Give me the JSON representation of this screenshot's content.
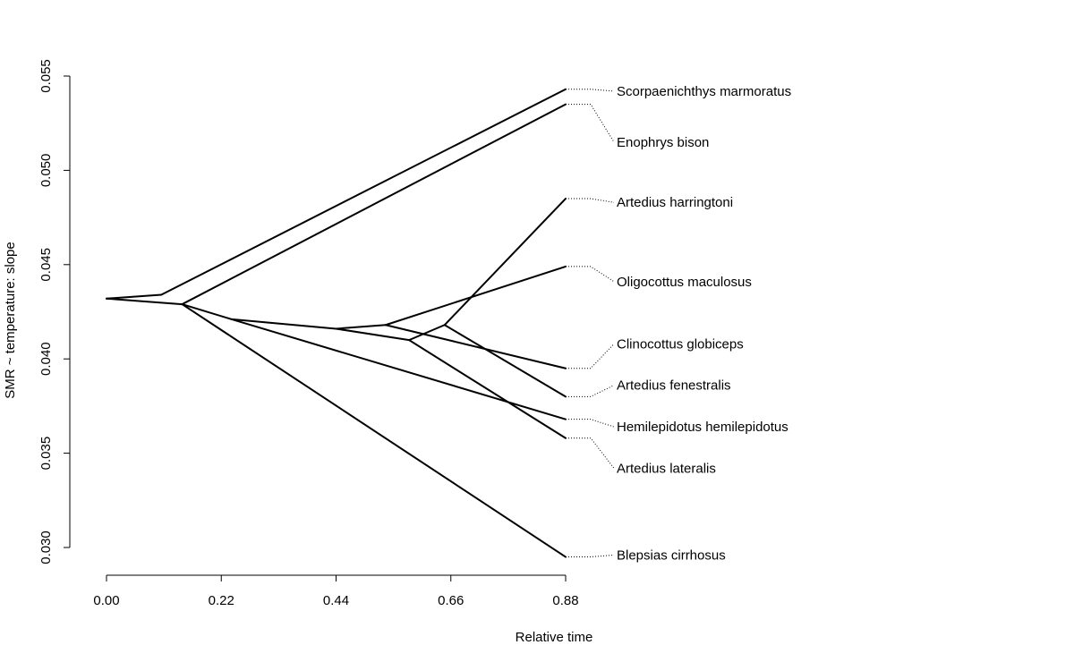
{
  "chart_data": {
    "type": "line",
    "xlabel": "Relative time",
    "ylabel": "SMR ~ temperature: slope",
    "xlim": [
      0,
      0.88
    ],
    "ylim": [
      0.03,
      0.055
    ],
    "xticks": [
      "0.00",
      "0.22",
      "0.44",
      "0.66",
      "0.88"
    ],
    "yticks": [
      "0.030",
      "0.035",
      "0.040",
      "0.045",
      "0.050",
      "0.055"
    ],
    "grid": false,
    "tip_time": 0.88,
    "nodes": [
      {
        "id": "n1",
        "x": 0.0,
        "y": 0.0432
      },
      {
        "id": "n2",
        "x": 0.105,
        "y": 0.0434
      },
      {
        "id": "n3",
        "x": 0.145,
        "y": 0.0429
      },
      {
        "id": "n4",
        "x": 0.24,
        "y": 0.0421
      },
      {
        "id": "n5",
        "x": 0.44,
        "y": 0.0416
      },
      {
        "id": "n6",
        "x": 0.535,
        "y": 0.0418
      },
      {
        "id": "n7",
        "x": 0.58,
        "y": 0.041
      },
      {
        "id": "n8",
        "x": 0.648,
        "y": 0.0418
      }
    ],
    "edges": [
      [
        "n1",
        "n2"
      ],
      [
        "n1",
        "n3"
      ],
      [
        "n3",
        "n4"
      ],
      [
        "n4",
        "n5"
      ],
      [
        "n5",
        "n6"
      ],
      [
        "n5",
        "n7"
      ],
      [
        "n7",
        "n8"
      ]
    ],
    "tips": [
      {
        "name": "Scorpaenichthys marmoratus",
        "parent": "n2",
        "y": 0.0543,
        "label_y": 0.0542
      },
      {
        "name": "Enophrys bison",
        "parent": "n3",
        "y": 0.0535,
        "label_y": 0.0515
      },
      {
        "name": "Artedius harringtoni",
        "parent": "n8",
        "y": 0.0485,
        "label_y": 0.0483
      },
      {
        "name": "Oligocottus maculosus",
        "parent": "n6",
        "y": 0.0449,
        "label_y": 0.0441
      },
      {
        "name": "Clinocottus globiceps",
        "parent": "n6",
        "y": 0.0395,
        "label_y": 0.0408
      },
      {
        "name": "Artedius fenestralis",
        "parent": "n8",
        "y": 0.038,
        "label_y": 0.0386
      },
      {
        "name": "Hemilepidotus hemilepidotus",
        "parent": "n4",
        "y": 0.0368,
        "label_y": 0.0364
      },
      {
        "name": "Artedius lateralis",
        "parent": "n7",
        "y": 0.0358,
        "label_y": 0.0342
      },
      {
        "name": "Blepsias cirrhosus",
        "parent": "n3",
        "y": 0.0295,
        "label_y": 0.0296
      }
    ]
  }
}
